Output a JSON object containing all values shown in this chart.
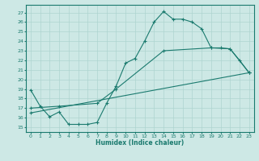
{
  "title": "",
  "xlabel": "Humidex (Indice chaleur)",
  "bg_color": "#cde8e5",
  "grid_color": "#aed4d0",
  "line_color": "#1a7a6e",
  "xlim": [
    -0.5,
    23.5
  ],
  "ylim": [
    14.5,
    27.8
  ],
  "yticks": [
    15,
    16,
    17,
    18,
    19,
    20,
    21,
    22,
    23,
    24,
    25,
    26,
    27
  ],
  "xticks": [
    0,
    1,
    2,
    3,
    4,
    5,
    6,
    7,
    8,
    9,
    10,
    11,
    12,
    13,
    14,
    15,
    16,
    17,
    18,
    19,
    20,
    21,
    22,
    23
  ],
  "line1_x": [
    0,
    1,
    2,
    3,
    4,
    5,
    6,
    7,
    8,
    9,
    10,
    11,
    12,
    13,
    14,
    15,
    16,
    17,
    18,
    19,
    20,
    21,
    22,
    23
  ],
  "line1_y": [
    18.9,
    17.2,
    16.1,
    16.6,
    15.3,
    15.3,
    15.3,
    15.5,
    17.5,
    19.3,
    21.7,
    22.2,
    24.0,
    26.0,
    27.1,
    26.3,
    26.3,
    26.0,
    25.3,
    23.3,
    23.3,
    23.2,
    22.0,
    20.7
  ],
  "line2_x": [
    0,
    3,
    7,
    9,
    14,
    19,
    21,
    23
  ],
  "line2_y": [
    17.0,
    17.2,
    17.5,
    19.0,
    23.0,
    23.3,
    23.2,
    20.7
  ],
  "line3_x": [
    0,
    23
  ],
  "line3_y": [
    16.5,
    20.7
  ],
  "marker": "+"
}
